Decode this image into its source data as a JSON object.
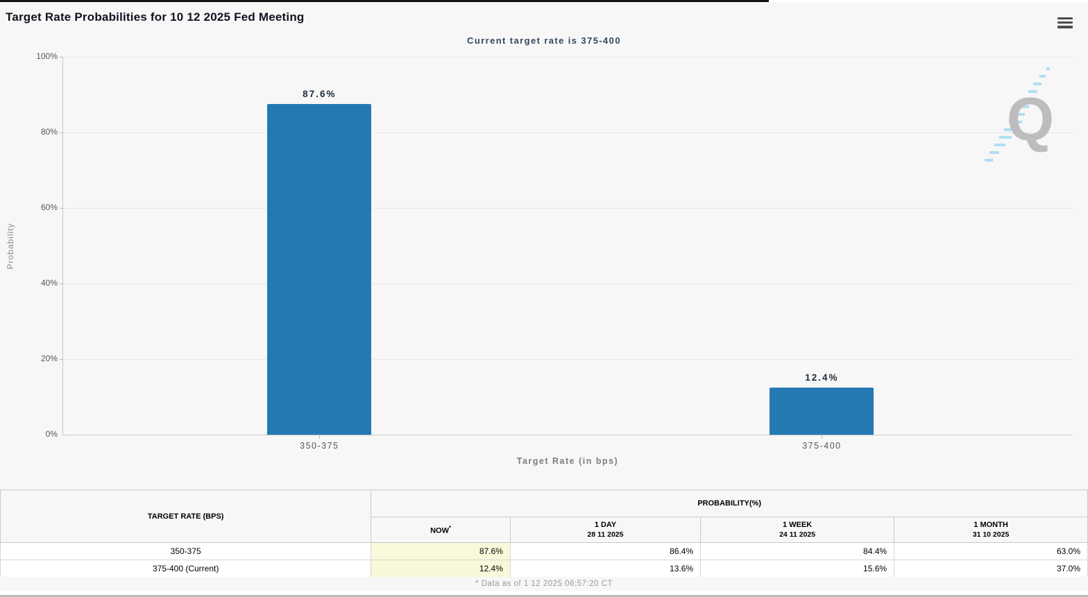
{
  "header": {
    "title": "Target Rate Probabilities for 10 12 2025 Fed Meeting"
  },
  "chart_data": {
    "type": "bar",
    "title": "Target Rate Probabilities for 10 12 2025 Fed Meeting",
    "subtitle": "Current target rate is 375-400",
    "categories": [
      "350-375",
      "375-400"
    ],
    "values": [
      87.6,
      12.4
    ],
    "bar_labels": [
      "87.6%",
      "12.4%"
    ],
    "xlabel": "Target Rate (in bps)",
    "ylabel": "Probability",
    "ylim": [
      0,
      100
    ],
    "y_ticks": [
      "0%",
      "20%",
      "40%",
      "60%",
      "80%",
      "100%"
    ],
    "grid": "horizontal-dotted",
    "legend_position": "none",
    "bar_color": "#2579b2"
  },
  "watermark": {
    "letter": "Q"
  },
  "table": {
    "rate_header": "TARGET RATE (BPS)",
    "prob_header": "PROBABILITY(%)",
    "columns": [
      {
        "label": "NOW",
        "note": "*",
        "date": ""
      },
      {
        "label": "1 DAY",
        "date": "28 11 2025"
      },
      {
        "label": "1 WEEK",
        "date": "24 11 2025"
      },
      {
        "label": "1 MONTH",
        "date": "31 10 2025"
      }
    ],
    "rows": [
      {
        "rate": "350-375",
        "now": "87.6%",
        "day1": "86.4%",
        "week1": "84.4%",
        "month1": "63.0%"
      },
      {
        "rate": "375-400 (Current)",
        "now": "12.4%",
        "day1": "13.6%",
        "week1": "15.6%",
        "month1": "37.0%"
      }
    ],
    "footnote": "* Data as of 1 12 2025 06:57:20 CT"
  }
}
